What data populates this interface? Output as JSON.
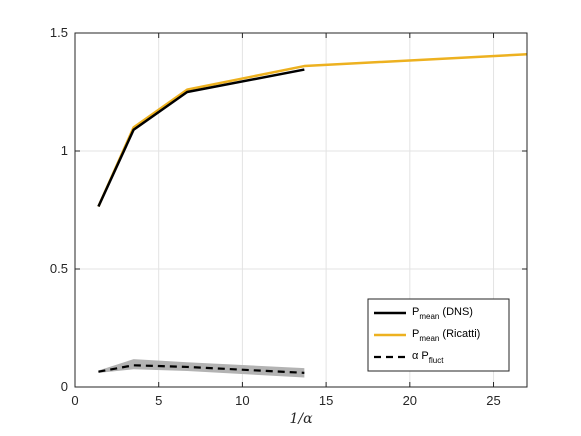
{
  "chart_data": {
    "type": "line",
    "title": "",
    "xlabel": "1/α",
    "ylabel": "",
    "xlim": [
      0,
      27
    ],
    "ylim": [
      0,
      1.5
    ],
    "xticks": [
      0,
      5,
      10,
      15,
      20,
      25
    ],
    "yticks": [
      0,
      0.5,
      1,
      1.5
    ],
    "xtick_labels": [
      "0",
      "5",
      "10",
      "15",
      "20",
      "25"
    ],
    "ytick_labels": [
      "0",
      "0.5",
      "1",
      "1.5"
    ],
    "grid": true,
    "legend_position": "bottom-right",
    "series": [
      {
        "name": "P",
        "name_sub": "mean",
        "name_suffix": " (DNS)",
        "color": "#000000",
        "style": "solid",
        "x": [
          1.4,
          3.5,
          6.7,
          13.7
        ],
        "y": [
          0.765,
          1.09,
          1.25,
          1.345
        ]
      },
      {
        "name": "P",
        "name_sub": "mean",
        "name_suffix": " (Ricatti)",
        "color": "#EDB120",
        "style": "solid",
        "x": [
          1.4,
          3.5,
          6.7,
          13.7,
          27
        ],
        "y": [
          0.765,
          1.1,
          1.26,
          1.36,
          1.41
        ]
      },
      {
        "name": "α P",
        "name_sub": "fluct",
        "name_suffix": "",
        "color": "#000000",
        "style": "dashed",
        "x": [
          1.4,
          3.5,
          6.7,
          13.7
        ],
        "y": [
          0.065,
          0.092,
          0.085,
          0.06
        ],
        "band_lower": [
          0.06,
          0.075,
          0.068,
          0.04
        ],
        "band_upper": [
          0.07,
          0.118,
          0.105,
          0.08
        ],
        "band_color": "#b3b3b3"
      }
    ]
  }
}
